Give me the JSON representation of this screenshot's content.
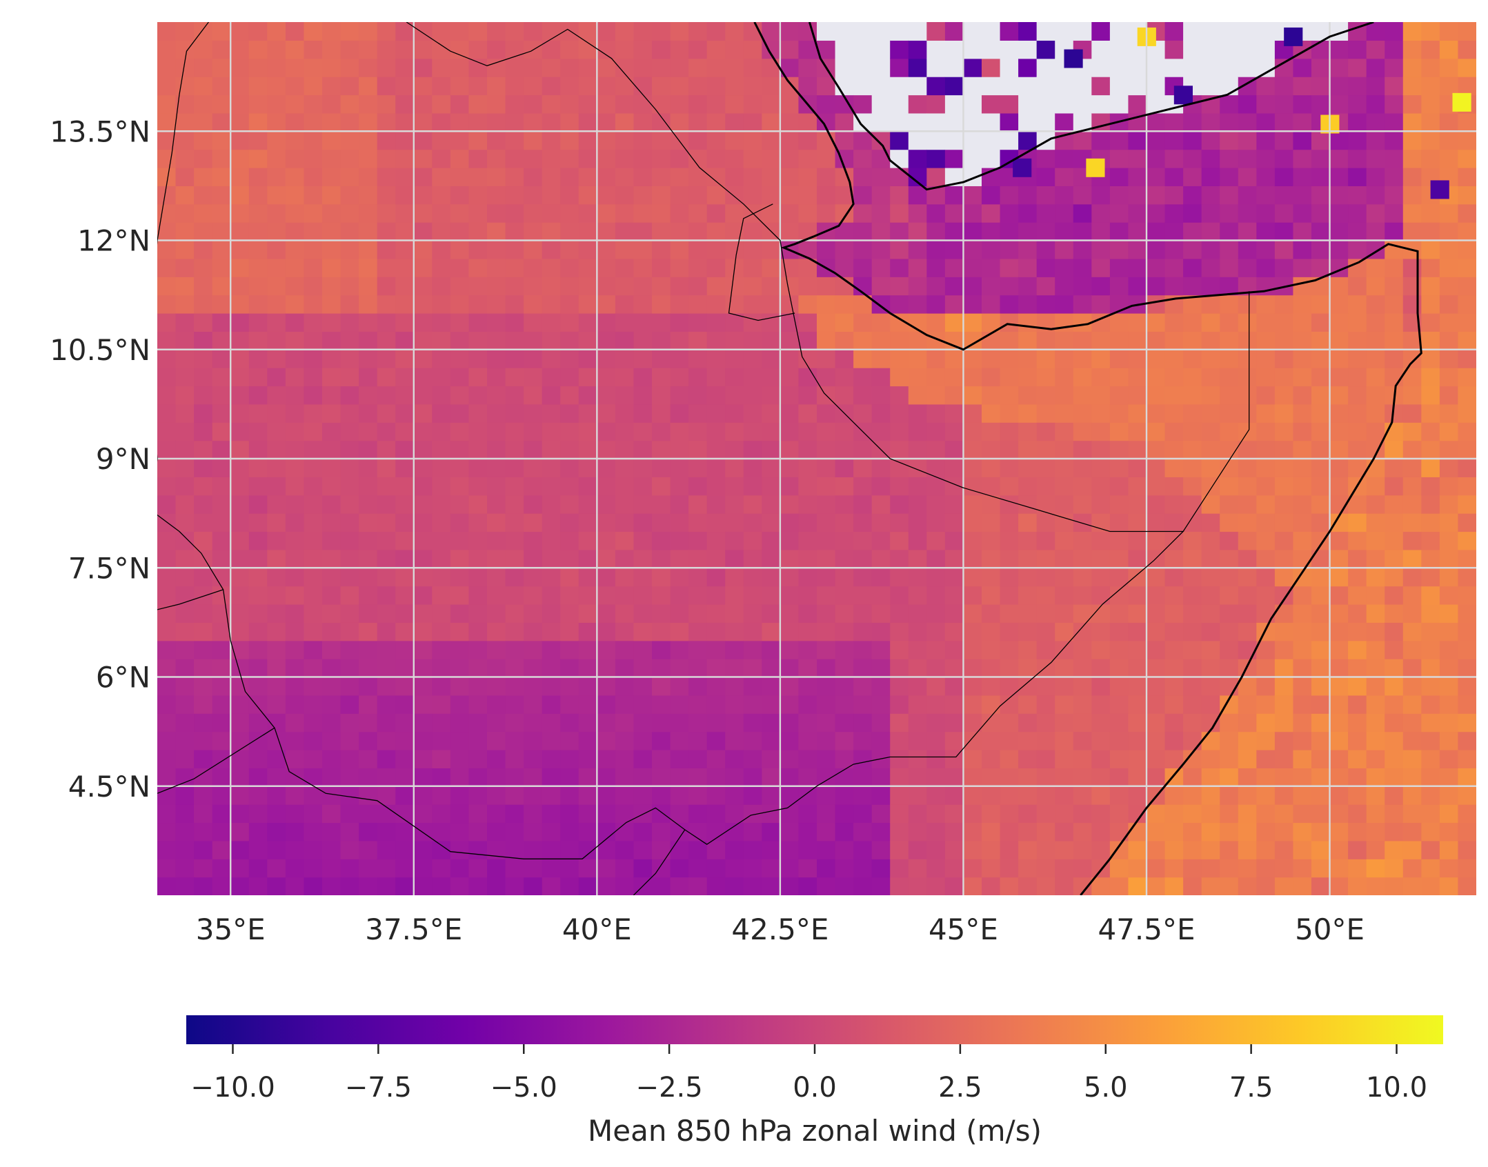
{
  "chart_data": {
    "type": "heatmap",
    "title": "",
    "colorbar_label": "Mean 850 hPa zonal wind (m/s)",
    "colormap": "plasma",
    "colormap_stops": [
      "#0d0887",
      "#46039f",
      "#7201a8",
      "#9c179e",
      "#bd3786",
      "#d8576b",
      "#ed7953",
      "#fb9f3a",
      "#fdca26",
      "#f0f921"
    ],
    "missing_color": "#e8e8f0",
    "grid_color": "#d9d9d9",
    "coastline_color": "#000000",
    "xlim": [
      34.0,
      52.0
    ],
    "ylim": [
      3.0,
      15.0
    ],
    "vmin": -10.8,
    "vmax": 10.8,
    "x_ticks": [
      35,
      37.5,
      40,
      42.5,
      45,
      47.5,
      50
    ],
    "x_tick_labels": [
      "35°E",
      "37.5°E",
      "40°E",
      "42.5°E",
      "45°E",
      "47.5°E",
      "50°E"
    ],
    "y_ticks": [
      4.5,
      6,
      7.5,
      9,
      10.5,
      12,
      13.5
    ],
    "y_tick_labels": [
      "4.5°N",
      "6°N",
      "7.5°N",
      "9°N",
      "10.5°N",
      "12°N",
      "13.5°N"
    ],
    "colorbar_ticks": [
      -10,
      -7.5,
      -5,
      -2.5,
      0,
      2.5,
      5,
      7.5,
      10
    ],
    "colorbar_tick_labels": [
      "−10.0",
      "−7.5",
      "−5.0",
      "−2.5",
      "0.0",
      "2.5",
      "5.0",
      "7.5",
      "10.0"
    ],
    "field_cell_deg": 0.25,
    "field_regions_mps": {
      "north_highlands": 1.5,
      "central_interior": 0.3,
      "southern_lowlands": -3.0,
      "red_sea": -1.5,
      "gulf_of_aden": -2.5,
      "horn_coast": 3.5,
      "somali_sea": 4.0
    },
    "extreme_cells": [
      {
        "lon": 47.5,
        "lat": 14.8,
        "value": 9
      },
      {
        "lon": 46.8,
        "lat": 13.0,
        "value": 9
      },
      {
        "lon": 51.8,
        "lat": 13.9,
        "value": 10.5
      },
      {
        "lon": 50.0,
        "lat": 13.6,
        "value": 8.5
      },
      {
        "lon": 46.5,
        "lat": 14.5,
        "value": -9.5
      },
      {
        "lon": 48.0,
        "lat": 14.0,
        "value": -9.0
      },
      {
        "lon": 45.8,
        "lat": 13.0,
        "value": -8.5
      },
      {
        "lon": 49.5,
        "lat": 14.8,
        "value": -9.5
      },
      {
        "lon": 51.5,
        "lat": 12.7,
        "value": -8.0
      }
    ]
  }
}
